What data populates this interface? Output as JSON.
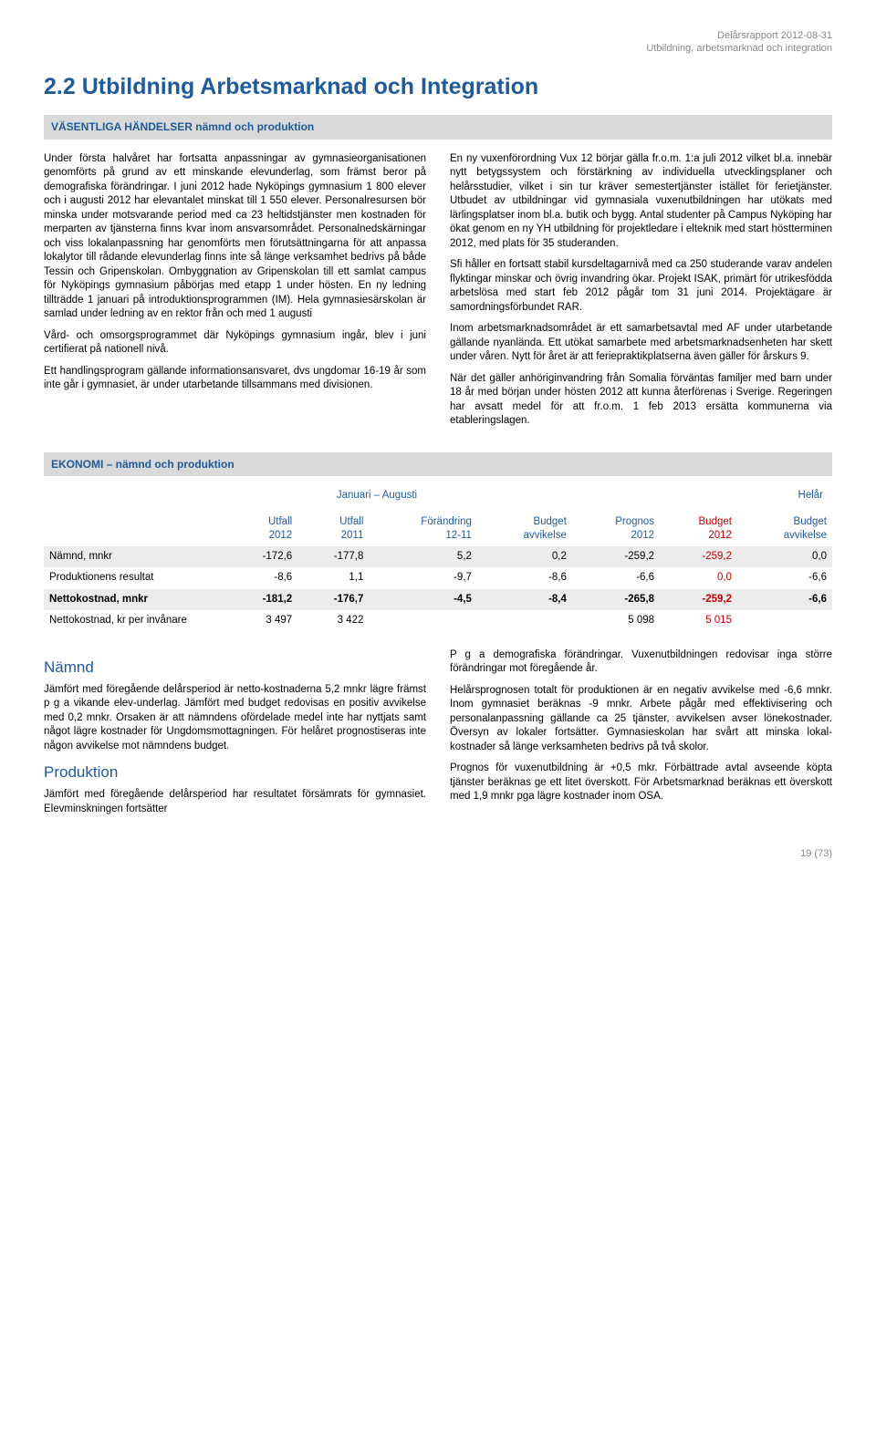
{
  "header": {
    "line1": "Delårsrapport 2012-08-31",
    "line2": "Utbildning, arbetsmarknad och integration"
  },
  "title": "2.2 Utbildning Arbetsmarknad och Integration",
  "section1_label": "VÄSENTLIGA HÄNDELSER nämnd och produktion",
  "left_col": {
    "p1": "Under första halvåret har fortsatta anpassningar av gymnasieorganisationen genomförts på grund av ett minskande elevunderlag, som främst beror på demografiska förändringar. I juni 2012 hade Nyköpings gymnasium 1 800 elever och i augusti 2012 har elevantalet minskat till 1 550 elever. Personalresursen bör minska under motsvarande period med ca 23 heltidstjänster men kostnaden för merparten av tjänsterna finns kvar inom ansvarsområdet. Personalnedskärningar och viss lokalanpassning har genomförts men förutsättningarna för att anpassa lokalytor till rådande elevunderlag finns inte så länge verksamhet bedrivs på både Tessin och Gripenskolan. Ombyggnation av Gripenskolan till ett samlat campus för Nyköpings gymnasium påbörjas med etapp 1 under hösten. En ny ledning tillträdde 1 januari på introduktionsprogrammen (IM). Hela gymnasiesärskolan är samlad under ledning av en rektor från och med 1 augusti",
    "p2": "Vård- och omsorgsprogrammet där Nyköpings gymnasium ingår, blev i juni certifierat på nationell nivå.",
    "p3": "Ett handlingsprogram gällande informationsansvaret, dvs ungdomar 16-19 år som inte går i gymnasiet, är under utarbetande tillsammans med divisionen."
  },
  "right_col": {
    "p1": "En ny vuxenförordning Vux 12 börjar gälla fr.o.m. 1:a juli 2012 vilket bl.a. innebär nytt betygssystem och förstärkning av individuella utvecklingsplaner och helårsstudier, vilket i sin tur kräver semestertjänster istället för ferietjänster. Utbudet av utbildningar vid gymnasiala vuxenutbildningen har utökats med lärlingsplatser inom bl.a. butik och bygg. Antal studenter på Campus Nyköping har ökat genom en ny YH utbildning för projektledare i elteknik med start höstterminen 2012, med plats för 35 studeranden.",
    "p2": "Sfi håller en fortsatt stabil kursdeltagarnivå med ca 250 studerande varav andelen flyktingar minskar och övrig invandring ökar. Projekt ISAK, primärt för utrikesfödda arbetslösa med start feb 2012 pågår tom 31 juni 2014. Projektägare är samordningsförbundet RAR.",
    "p3": "Inom arbetsmarknadsområdet är ett samarbetsavtal med AF under utarbetande gällande nyanlända. Ett utökat samarbete med arbetsmarknadsenheten har skett under våren. Nytt för året är att feriepraktikplatserna även gäller för årskurs 9.",
    "p4": "När det gäller anhöriginvandring från Somalia förväntas familjer med barn under 18 år med början under hösten 2012 att kunna återförenas i Sverige. Regeringen har avsatt medel för att fr.o.m. 1 feb 2013 ersätta kommunerna via etableringslagen."
  },
  "section2_label": "EKONOMI – nämnd och produktion",
  "table": {
    "period1": "Januari – Augusti",
    "period2": "Helår",
    "headers": {
      "h0": "",
      "h1a": "Utfall",
      "h1b": "2012",
      "h2a": "Utfall",
      "h2b": "2011",
      "h3a": "Förändring",
      "h3b": "12-11",
      "h4a": "Budget",
      "h4b": "avvikelse",
      "h5a": "Prognos",
      "h5b": "2012",
      "h6a": "Budget",
      "h6b": "2012",
      "h7a": "Budget",
      "h7b": "avvikelse"
    },
    "rows": [
      {
        "label": "Nämnd, mnkr",
        "c1": "-172,6",
        "c2": "-177,8",
        "c3": "5,2",
        "c4": "0,2",
        "c5": "-259,2",
        "c6": "-259,2",
        "c6red": true,
        "c7": "0,0",
        "bold": false,
        "shade": true
      },
      {
        "label": "Produktionens resultat",
        "c1": "-8,6",
        "c2": "1,1",
        "c3": "-9,7",
        "c4": "-8,6",
        "c5": "-6,6",
        "c6": "0,0",
        "c6red": true,
        "c7": "-6,6",
        "bold": false,
        "shade": false
      },
      {
        "label": "Nettokostnad, mnkr",
        "c1": "-181,2",
        "c2": "-176,7",
        "c3": "-4,5",
        "c4": "-8,4",
        "c5": "-265,8",
        "c6": "-259,2",
        "c6red": true,
        "c7": "-6,6",
        "bold": true,
        "shade": true
      },
      {
        "label": "Nettokostnad, kr per invånare",
        "c1": "3 497",
        "c2": "3 422",
        "c3": "",
        "c4": "",
        "c5": "5 098",
        "c6": "5 015",
        "c6red": true,
        "c7": "",
        "bold": false,
        "shade": false
      }
    ]
  },
  "bottom_left": {
    "h1": "Nämnd",
    "p1": "Jämfört med föregående delårsperiod är netto-kostnaderna 5,2 mnkr lägre främst p g a vikande elev-underlag. Jämfört med budget redovisas en positiv avvikelse med 0,2 mnkr. Orsaken är att nämndens ofördelade medel inte har nyttjats samt något lägre kostnader för Ungdomsmottagningen. För helåret prognostiseras inte någon avvikelse mot nämndens budget.",
    "h2": "Produktion",
    "p2": "Jämfört med föregående delårsperiod har resultatet försämrats för gymnasiet. Elevminskningen fortsätter"
  },
  "bottom_right": {
    "p1": "P g a demografiska förändringar. Vuxenutbildningen redovisar inga större förändringar mot föregående år.",
    "p2": "Helårsprognosen totalt för produktionen är en negativ avvikelse med -6,6 mnkr. Inom gymnasiet beräknas -9 mnkr. Arbete pågår med effektivisering och personalanpassning gällande ca 25 tjänster, avvikelsen avser lönekostnader. Översyn av lokaler fortsätter. Gymnasieskolan har svårt att minska lokal-kostnader så länge verksamheten bedrivs på två skolor.",
    "p3": "Prognos för vuxenutbildning är +0,5 mkr. Förbättrade avtal avseende köpta tjänster beräknas ge ett litet överskott. För Arbetsmarknad beräknas ett överskott med 1,9 mnkr pga lägre kostnader inom OSA."
  },
  "footer": "19 (73)",
  "colors": {
    "heading": "#1f5a99",
    "meta": "#888888",
    "bar_bg": "#d9d9d9",
    "shade_bg": "#ececec",
    "red": "#c00000",
    "background": "#ffffff",
    "text": "#000000"
  }
}
